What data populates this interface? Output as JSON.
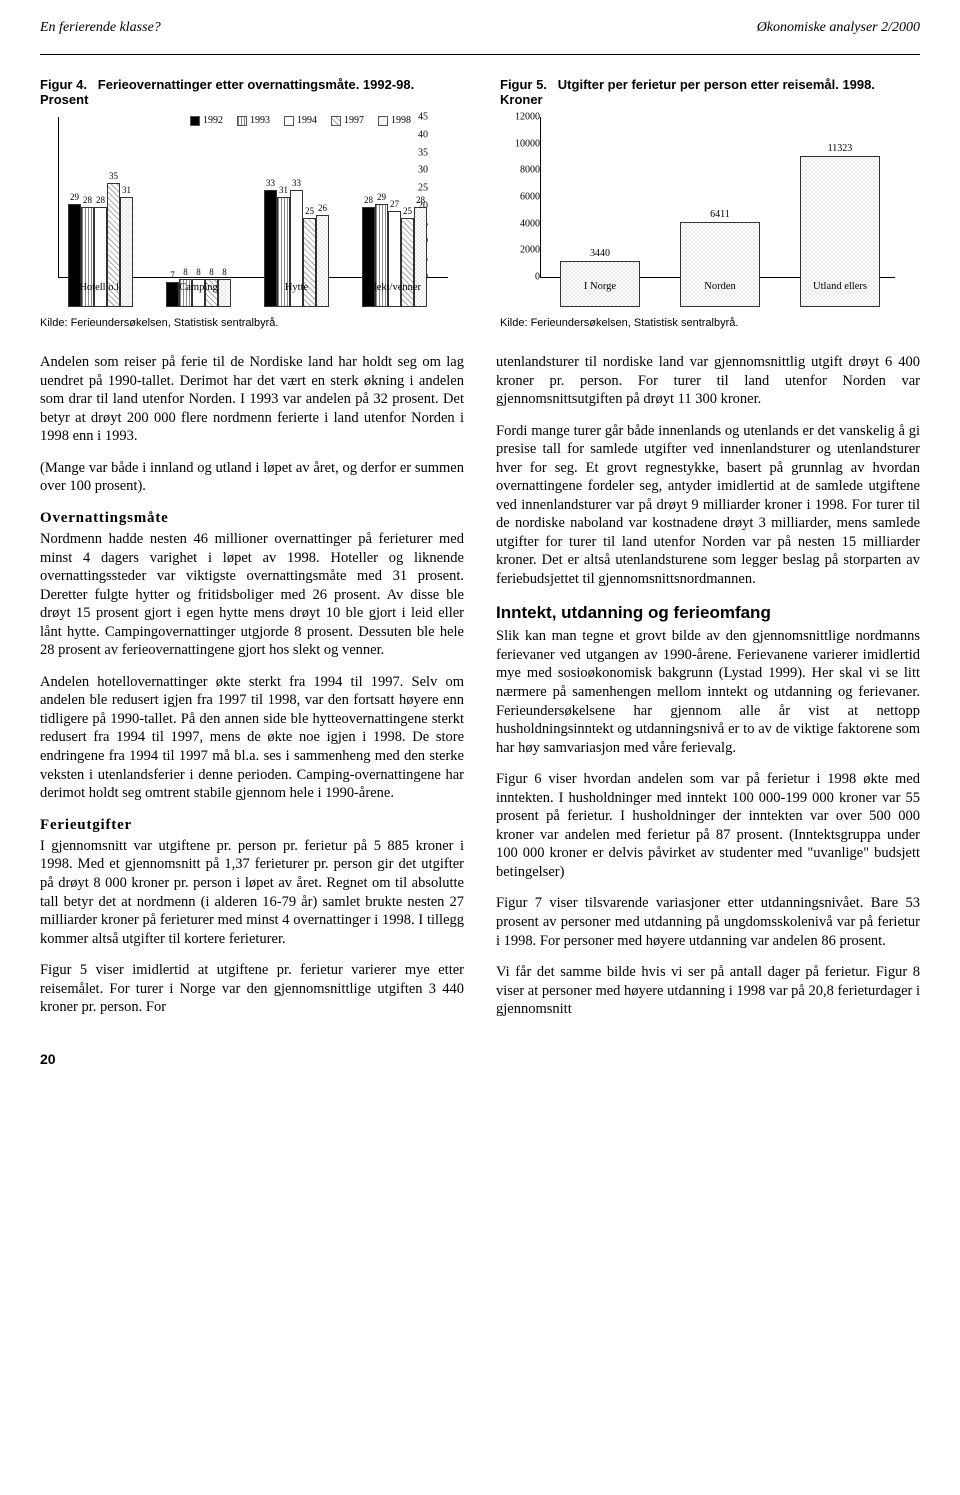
{
  "header": {
    "left": "En ferierende klasse?",
    "right": "Økonomiske analyser 2/2000"
  },
  "fig4": {
    "lead": "Figur 4.",
    "title": "Ferieovernattinger etter overnattingsmåte. 1992-98. Prosent",
    "ymax": 45,
    "ytick_step": 5,
    "years": [
      "1992",
      "1993",
      "1994",
      "1997",
      "1998"
    ],
    "patterns": [
      "p0",
      "p1",
      "p2",
      "p3",
      "p4"
    ],
    "categories": [
      "Hotell o.l.",
      "Camping",
      "Hytte",
      "Slekt/venner"
    ],
    "values": [
      [
        29,
        28,
        28,
        35,
        31
      ],
      [
        7,
        8,
        8,
        8,
        8
      ],
      [
        33,
        31,
        33,
        25,
        26
      ],
      [
        28,
        29,
        27,
        25,
        28
      ]
    ],
    "source": "Kilde: Ferieundersøkelsen, Statistisk sentralbyrå."
  },
  "fig5": {
    "lead": "Figur 5.",
    "title": "Utgifter per ferietur per person etter reisemål. 1998. Kroner",
    "ymax": 12000,
    "ytick_step": 2000,
    "categories": [
      "I Norge",
      "Norden",
      "Utland ellers"
    ],
    "values": [
      3440,
      6411,
      11323
    ],
    "bar_pattern": "p4",
    "source": "Kilde: Ferieundersøkelsen, Statistisk sentralbyrå."
  },
  "body": {
    "p1": "Andelen som reiser på ferie til de Nordiske land har holdt seg om lag uendret på 1990-tallet. Derimot har det vært en sterk økning i andelen som drar til land utenfor Norden. I 1993 var andelen på 32 prosent. Det betyr at drøyt 200 000 flere nordmenn ferierte i land utenfor Norden i 1998 enn i 1993.",
    "p2": "(Mange var både i innland og utland i løpet av året, og derfor er summen over 100 prosent).",
    "h1": "Overnattingsmåte",
    "p3": "Nordmenn hadde nesten 46 millioner overnattinger på ferieturer med minst 4 dagers varighet i løpet av 1998. Hoteller og liknende overnattingssteder var viktigste overnattingsmåte med 31 prosent. Deretter fulgte hytter og fritidsboliger med 26 prosent. Av disse ble drøyt 15 prosent gjort i egen hytte mens drøyt 10 ble gjort i leid eller lånt hytte. Campingovernattinger utgjorde 8 prosent. Dessuten ble hele 28 prosent av ferieovernattingene gjort hos slekt og venner.",
    "p4": "Andelen hotellovernattinger økte sterkt fra 1994 til 1997. Selv om andelen ble redusert igjen fra 1997 til 1998, var den fortsatt høyere enn tidligere på 1990-tallet. På den annen side ble hytteovernattingene sterkt redusert fra 1994 til 1997, mens de økte noe igjen i 1998. De store endringene fra 1994 til 1997 må bl.a. ses i sammenheng med den sterke veksten i utenlandsferier i denne perioden. Camping-overnattingene har derimot holdt seg omtrent stabile gjennom hele i 1990-årene.",
    "h2": "Ferieutgifter",
    "p5": "I gjennomsnitt var utgiftene pr. person pr. ferietur på 5 885 kroner i 1998. Med et gjennomsnitt på 1,37 ferieturer pr. person gir det utgifter på drøyt 8 000 kroner pr. person i løpet av året. Regnet om til absolutte tall betyr det at nordmenn (i alderen 16-79 år) samlet brukte nesten 27 milliarder kroner på ferieturer med minst 4 overnattinger i 1998. I tillegg kommer altså utgifter til kortere ferieturer.",
    "p6": "Figur 5 viser imidlertid at utgiftene pr. ferietur varierer mye etter reisemålet. For turer i Norge var den gjennomsnittlige utgiften 3 440 kroner pr. person. For",
    "p7": "utenlandsturer til nordiske land var gjennomsnittlig utgift drøyt 6 400 kroner pr. person. For turer til land utenfor Norden var gjennomsnittsutgiften på drøyt 11 300 kroner.",
    "p8": "Fordi mange turer går både innenlands og utenlands er det vanskelig å gi presise tall for samlede utgifter ved innenlandsturer og utenlandsturer hver for seg. Et grovt regnestykke, basert på grunnlag av hvordan overnattingene fordeler seg, antyder imidlertid at de samlede utgiftene ved innenlandsturer var på drøyt 9 milliarder kroner i 1998. For turer til de nordiske naboland var kostnadene drøyt 3 milliarder, mens samlede utgifter for turer til land utenfor Norden var på nesten 15 milliarder kroner. Det er altså utenlandsturene som legger beslag på storparten av feriebudsjettet til gjennomsnittsnordmannen.",
    "h3": "Inntekt, utdanning og ferieomfang",
    "p9": "Slik kan man tegne et grovt bilde av den gjennomsnittlige nordmanns ferievaner ved utgangen av 1990-årene. Ferievanene varierer imidlertid mye med sosioøkonomisk bakgrunn (Lystad 1999). Her skal vi se litt nærmere på samenhengen mellom inntekt og utdanning og ferievaner. Ferieundersøkelsene har gjennom alle år vist at nettopp husholdningsinntekt og utdanningsnivå er to av de viktige faktorene som har høy samvariasjon med våre ferievalg.",
    "p10": "Figur 6 viser hvordan andelen som var på ferietur i 1998 økte med inntekten. I husholdninger med inntekt 100 000-199 000 kroner var 55 prosent på ferietur. I husholdninger der inntekten var over 500 000 kroner var andelen med ferietur på 87 prosent. (Inntektsgruppa under 100 000 kroner er delvis påvirket av studenter med \"uvanlige\" budsjett betingelser)",
    "p11": "Figur 7 viser tilsvarende variasjoner etter utdanningsnivået. Bare 53 prosent av personer med utdanning på ungdomsskolenivå var på ferietur i 1998. For personer med høyere utdanning var andelen 86 prosent.",
    "p12": "Vi får det samme bilde hvis vi ser på antall dager på ferietur. Figur 8 viser at personer med høyere utdanning i 1998 var på 20,8 ferieturdager i gjennomsnitt"
  },
  "page": "20"
}
